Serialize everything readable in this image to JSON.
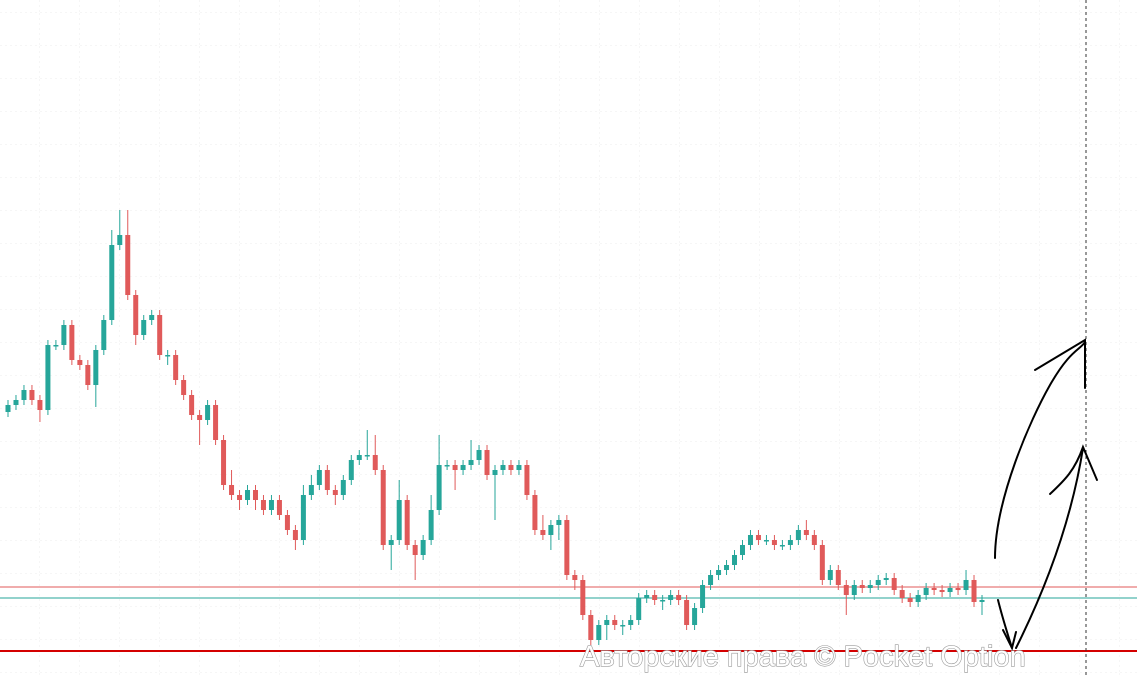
{
  "chart_data": {
    "type": "candlestick",
    "ylim": [
      0,
      677
    ],
    "up_color": "#26a69a",
    "down_color": "#e05a5a",
    "watermark": "Авторские права © Pocket Option",
    "levels": [
      {
        "value": 90,
        "color": "#e05a5a"
      },
      {
        "value": 79,
        "color": "#26a69a"
      },
      {
        "value": 26,
        "color": "#d40000"
      }
    ],
    "open": [
      265,
      272,
      277,
      287,
      277,
      267,
      332,
      332,
      352,
      317,
      312,
      292,
      327,
      357,
      432,
      442,
      382,
      342,
      357,
      362,
      322,
      322,
      297,
      282,
      262,
      257,
      272,
      237,
      192,
      182,
      177,
      187,
      177,
      167,
      177,
      162,
      147,
      137,
      182,
      192,
      207,
      187,
      182,
      197,
      217,
      222,
      222,
      207,
      132,
      137,
      177,
      132,
      122,
      137,
      167,
      212,
      212,
      207,
      212,
      217,
      227,
      202,
      207,
      212,
      207,
      212,
      182,
      147,
      142,
      152,
      157,
      102,
      97,
      62,
      37,
      52,
      57,
      52,
      52,
      57,
      79,
      82,
      77,
      77,
      82,
      77,
      52,
      69,
      92,
      102,
      107,
      112,
      122,
      132,
      142,
      137,
      137,
      132,
      132,
      137,
      147,
      142,
      132,
      97,
      107,
      92,
      82,
      92,
      89,
      92,
      97,
      99,
      87,
      79,
      75,
      82,
      89,
      87,
      85,
      89,
      87,
      97,
      75
    ],
    "high": [
      277,
      282,
      292,
      292,
      282,
      337,
      337,
      357,
      357,
      322,
      317,
      332,
      362,
      447,
      467,
      467,
      387,
      362,
      367,
      367,
      327,
      327,
      302,
      287,
      267,
      277,
      277,
      242,
      207,
      187,
      192,
      192,
      182,
      182,
      182,
      167,
      152,
      192,
      202,
      212,
      212,
      192,
      202,
      222,
      227,
      247,
      242,
      212,
      142,
      197,
      182,
      137,
      142,
      182,
      242,
      217,
      217,
      217,
      237,
      232,
      232,
      212,
      217,
      217,
      217,
      217,
      187,
      162,
      157,
      162,
      162,
      107,
      102,
      67,
      57,
      62,
      62,
      57,
      62,
      84,
      87,
      87,
      82,
      87,
      87,
      82,
      74,
      97,
      107,
      112,
      117,
      127,
      137,
      147,
      147,
      142,
      142,
      137,
      142,
      152,
      157,
      147,
      137,
      112,
      112,
      97,
      97,
      97,
      97,
      102,
      104,
      104,
      92,
      84,
      87,
      94,
      94,
      92,
      94,
      94,
      107,
      102,
      82
    ],
    "low": [
      260,
      267,
      272,
      272,
      255,
      262,
      327,
      327,
      312,
      307,
      287,
      270,
      322,
      352,
      427,
      377,
      332,
      337,
      352,
      317,
      312,
      292,
      277,
      257,
      232,
      252,
      232,
      187,
      177,
      167,
      172,
      167,
      162,
      162,
      157,
      142,
      127,
      132,
      177,
      187,
      182,
      172,
      177,
      192,
      212,
      217,
      202,
      127,
      107,
      132,
      127,
      97,
      117,
      132,
      162,
      207,
      187,
      202,
      207,
      212,
      197,
      157,
      202,
      202,
      202,
      177,
      142,
      137,
      127,
      137,
      97,
      87,
      57,
      32,
      32,
      37,
      47,
      42,
      47,
      52,
      74,
      72,
      67,
      72,
      72,
      47,
      47,
      64,
      87,
      97,
      102,
      107,
      117,
      127,
      132,
      132,
      127,
      127,
      127,
      132,
      137,
      127,
      92,
      92,
      87,
      62,
      77,
      84,
      84,
      87,
      92,
      82,
      74,
      70,
      70,
      77,
      82,
      80,
      80,
      82,
      82,
      70,
      62
    ],
    "close": [
      272,
      277,
      287,
      277,
      267,
      332,
      332,
      352,
      317,
      312,
      292,
      327,
      357,
      432,
      442,
      382,
      342,
      357,
      362,
      322,
      322,
      297,
      282,
      262,
      257,
      272,
      237,
      192,
      182,
      177,
      187,
      177,
      167,
      177,
      162,
      147,
      137,
      182,
      192,
      207,
      187,
      182,
      197,
      217,
      222,
      222,
      207,
      132,
      137,
      177,
      132,
      122,
      137,
      167,
      212,
      212,
      207,
      212,
      217,
      227,
      202,
      207,
      212,
      207,
      212,
      182,
      147,
      142,
      152,
      157,
      102,
      97,
      62,
      37,
      52,
      57,
      52,
      52,
      57,
      79,
      82,
      77,
      77,
      82,
      77,
      52,
      69,
      92,
      102,
      107,
      112,
      122,
      132,
      142,
      137,
      137,
      132,
      132,
      137,
      147,
      142,
      132,
      97,
      107,
      92,
      82,
      92,
      89,
      92,
      97,
      99,
      87,
      79,
      75,
      82,
      89,
      87,
      85,
      89,
      87,
      97,
      75,
      77
    ]
  }
}
